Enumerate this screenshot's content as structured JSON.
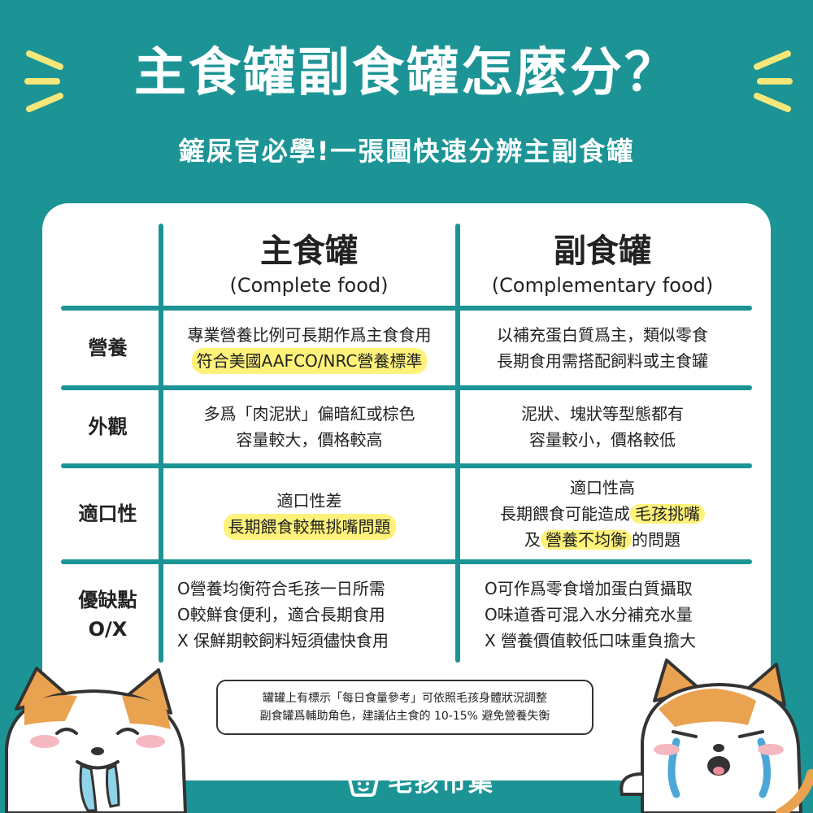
{
  "title": "主食罐副食罐怎麼分？",
  "subtitle": "鏟屎官必學!一張圖快速分辨主副食罐",
  "columns": {
    "main": {
      "zh": "主食罐",
      "en": "(Complete food)"
    },
    "side": {
      "zh": "副食罐",
      "en": "(Complementary food)"
    }
  },
  "rows": [
    {
      "label": "營養",
      "main": [
        {
          "text": "專業營養比例可長期作爲主食食用",
          "highlight": false
        },
        {
          "text": "符合美國AAFCO/NRC營養標準",
          "highlight": true
        }
      ],
      "side": [
        {
          "text": "以補充蛋白質爲主，類似零食",
          "highlight": false
        },
        {
          "text": "長期食用需搭配飼料或主食罐",
          "highlight": false
        }
      ]
    },
    {
      "label": "外觀",
      "main": [
        {
          "text": "多爲「肉泥狀」偏暗紅或棕色",
          "highlight": false
        },
        {
          "text": "容量較大，價格較高",
          "highlight": false
        }
      ],
      "side": [
        {
          "text": "泥狀、塊狀等型態都有",
          "highlight": false
        },
        {
          "text": "容量較小，價格較低",
          "highlight": false
        }
      ]
    },
    {
      "label": "適口性",
      "main": [
        {
          "text": "適口性差",
          "highlight": false
        },
        {
          "text": "長期餵食較無挑嘴問題",
          "highlight": true
        }
      ],
      "side": [
        {
          "text": "適口性高"
        },
        {
          "pre": "長期餵食可能造成",
          "hl": "毛孩挑嘴",
          "post": ""
        },
        {
          "pre": "及",
          "hl": "營養不均衡",
          "post": "的問題"
        }
      ]
    },
    {
      "label_line1": "優缺點",
      "label_line2": "O/X",
      "main": [
        {
          "text": "O營養均衡符合毛孩一日所需"
        },
        {
          "text": "O較鮮食便利，適合長期食用"
        },
        {
          "text": "X 保鮮期較飼料短須儘快食用"
        }
      ],
      "side": [
        {
          "text": "O可作爲零食增加蛋白質攝取"
        },
        {
          "text": "O味道香可混入水分補充水量"
        },
        {
          "text": "X 營養價值較低口味重負擔大"
        }
      ]
    }
  ],
  "note": {
    "line1": "罐罐上有標示「每日食量參考」可依照毛孩身體狀況調整",
    "line2": "副食罐爲輔助角色，建議佔主食的 10-15% 避免營養失衡"
  },
  "brand": "毛孩市集",
  "colors": {
    "teal": "#1c9496",
    "highlight": "#fff27a",
    "spark": "#f6e77a"
  }
}
